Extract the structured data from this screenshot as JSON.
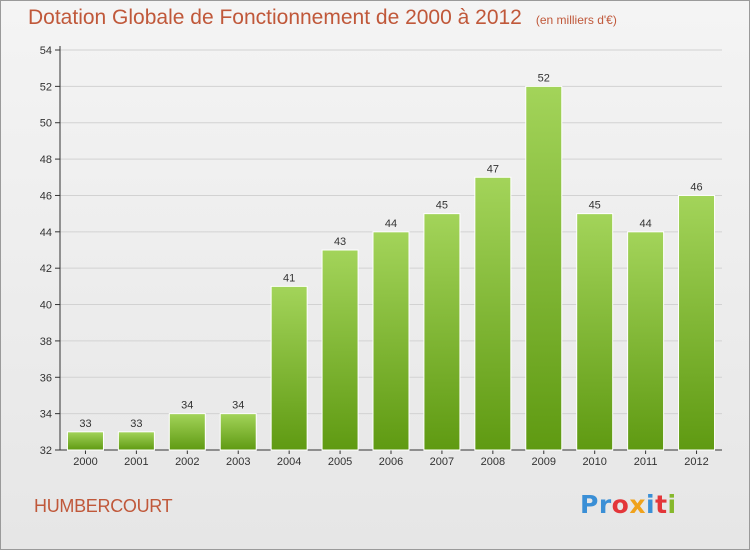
{
  "header": {
    "title": "Dotation Globale de Fonctionnement de 2000 à 2012",
    "subtitle": "(en milliers d'€)"
  },
  "footer": {
    "commune": "HUMBERCOURT",
    "logo_text": "Proxiti",
    "logo_colors": [
      "#3a8fd6",
      "#3a8fd6",
      "#e3363a",
      "#f0a21b",
      "#3a8fd6",
      "#e3363a",
      "#86b82c"
    ]
  },
  "colors": {
    "title": "#c0583a",
    "bar_top": "#a3d45a",
    "bar_bottom": "#5f9a12"
  },
  "chart_data": {
    "type": "bar",
    "categories": [
      "2000",
      "2001",
      "2002",
      "2003",
      "2004",
      "2005",
      "2006",
      "2007",
      "2008",
      "2009",
      "2010",
      "2011",
      "2012"
    ],
    "values": [
      33,
      33,
      34,
      34,
      41,
      43,
      44,
      45,
      47,
      52,
      45,
      44,
      46
    ],
    "title": "Dotation Globale de Fonctionnement de 2000 à 2012",
    "subtitle": "(en milliers d'€)",
    "ylim": [
      32,
      54
    ],
    "yticks": [
      32,
      34,
      36,
      38,
      40,
      42,
      44,
      46,
      48,
      50,
      52,
      54
    ],
    "grid": true,
    "data_labels": true
  }
}
